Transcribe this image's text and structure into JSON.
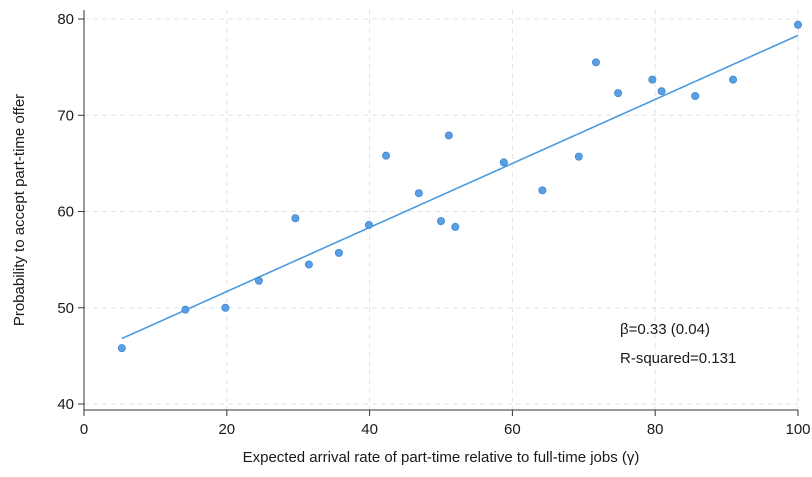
{
  "chart_data": {
    "type": "scatter",
    "title": "",
    "xlabel": "Expected arrival rate of part-time relative to full-time jobs (γ)",
    "ylabel": "Probability to accept part-time offer",
    "xlim": [
      0,
      100
    ],
    "ylim": [
      40,
      80
    ],
    "xticks": [
      0,
      20,
      40,
      60,
      80,
      100
    ],
    "yticks": [
      40,
      50,
      60,
      70,
      80
    ],
    "xtick_labels": [
      "0",
      "20",
      "40",
      "60",
      "80",
      "100"
    ],
    "ytick_labels": [
      "40",
      "50",
      "60",
      "70",
      "80"
    ],
    "grid": true,
    "points": [
      {
        "x": 5.3,
        "y": 45.8
      },
      {
        "x": 14.2,
        "y": 49.8
      },
      {
        "x": 19.8,
        "y": 50.0
      },
      {
        "x": 24.5,
        "y": 52.8
      },
      {
        "x": 29.6,
        "y": 59.3
      },
      {
        "x": 31.5,
        "y": 54.5
      },
      {
        "x": 35.7,
        "y": 55.7
      },
      {
        "x": 39.9,
        "y": 58.6
      },
      {
        "x": 42.3,
        "y": 65.8
      },
      {
        "x": 46.9,
        "y": 61.9
      },
      {
        "x": 50.0,
        "y": 59.0
      },
      {
        "x": 51.1,
        "y": 67.9
      },
      {
        "x": 52.0,
        "y": 58.4
      },
      {
        "x": 58.8,
        "y": 65.1
      },
      {
        "x": 64.2,
        "y": 62.2
      },
      {
        "x": 69.3,
        "y": 65.7
      },
      {
        "x": 71.7,
        "y": 75.5
      },
      {
        "x": 74.8,
        "y": 72.3
      },
      {
        "x": 79.6,
        "y": 73.7
      },
      {
        "x": 80.9,
        "y": 72.5
      },
      {
        "x": 85.6,
        "y": 72.0
      },
      {
        "x": 90.9,
        "y": 73.7
      },
      {
        "x": 100.0,
        "y": 79.4
      }
    ],
    "fit_line": {
      "x": [
        5.3,
        100.0
      ],
      "y": [
        46.8,
        78.3
      ]
    },
    "annotations": [
      "β=0.33 (0.04)",
      "R-squared=0.131"
    ],
    "colors": {
      "points": "#5b9fe3",
      "points_edge": "#3f87d3",
      "fit_line": "#4a9be0",
      "grid": "#e3e3e3",
      "axis": "#333333"
    }
  }
}
